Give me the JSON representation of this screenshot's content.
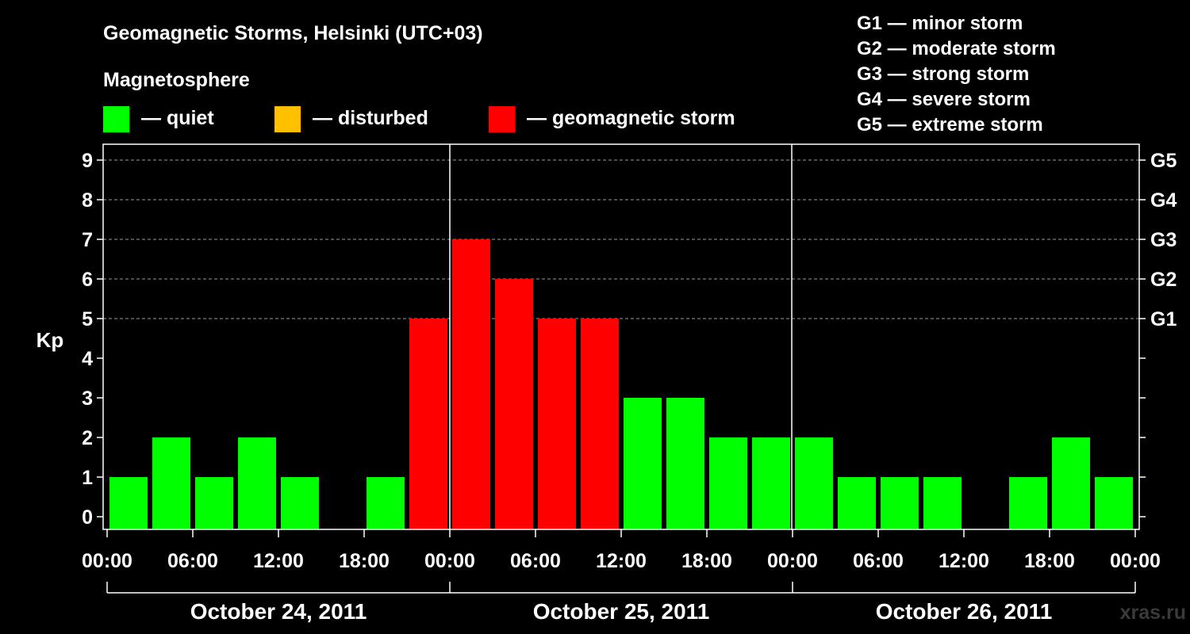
{
  "title": "Geomagnetic Storms, Helsinki (UTC+03)",
  "legend": {
    "heading": "Magnetosphere",
    "items": [
      {
        "label": "— quiet",
        "color": "#00ff00"
      },
      {
        "label": "— disturbed",
        "color": "#ffc000"
      },
      {
        "label": "— geomagnetic storm",
        "color": "#ff0000"
      }
    ]
  },
  "storm_scale": [
    "G1 — minor storm",
    "G2 — moderate storm",
    "G3 — strong storm",
    "G4 — severe storm",
    "G5 — extreme storm"
  ],
  "watermark": "xras.ru",
  "chart_data": {
    "type": "bar",
    "ylabel": "Kp",
    "ylim": [
      0,
      9
    ],
    "y_ticks": [
      "0",
      "1",
      "2",
      "3",
      "4",
      "5",
      "6",
      "7",
      "8",
      "9"
    ],
    "right_axis_labels": [
      {
        "label": "G1",
        "kp": 5
      },
      {
        "label": "G2",
        "kp": 6
      },
      {
        "label": "G3",
        "kp": 7
      },
      {
        "label": "G4",
        "kp": 8
      },
      {
        "label": "G5",
        "kp": 9
      }
    ],
    "x_ticks": [
      "00:00",
      "06:00",
      "12:00",
      "18:00",
      "00:00",
      "06:00",
      "12:00",
      "18:00",
      "00:00",
      "06:00",
      "12:00",
      "18:00",
      "00:00"
    ],
    "days": [
      "October 24, 2011",
      "October 25, 2011",
      "October 26, 2011"
    ],
    "interval_hours": 3,
    "series": [
      {
        "values": [
          1,
          2,
          1,
          2,
          1,
          0,
          1,
          5,
          7,
          6,
          5,
          5,
          3,
          3,
          2,
          2,
          2,
          1,
          1,
          1,
          0,
          1,
          2,
          1
        ],
        "colors": [
          "#00ff00",
          "#00ff00",
          "#00ff00",
          "#00ff00",
          "#00ff00",
          "#00ff00",
          "#00ff00",
          "#ff0000",
          "#ff0000",
          "#ff0000",
          "#ff0000",
          "#ff0000",
          "#00ff00",
          "#00ff00",
          "#00ff00",
          "#00ff00",
          "#00ff00",
          "#00ff00",
          "#00ff00",
          "#00ff00",
          "#00ff00",
          "#00ff00",
          "#00ff00",
          "#00ff00"
        ]
      }
    ],
    "grid": "dashed horizontal at 5-9"
  }
}
